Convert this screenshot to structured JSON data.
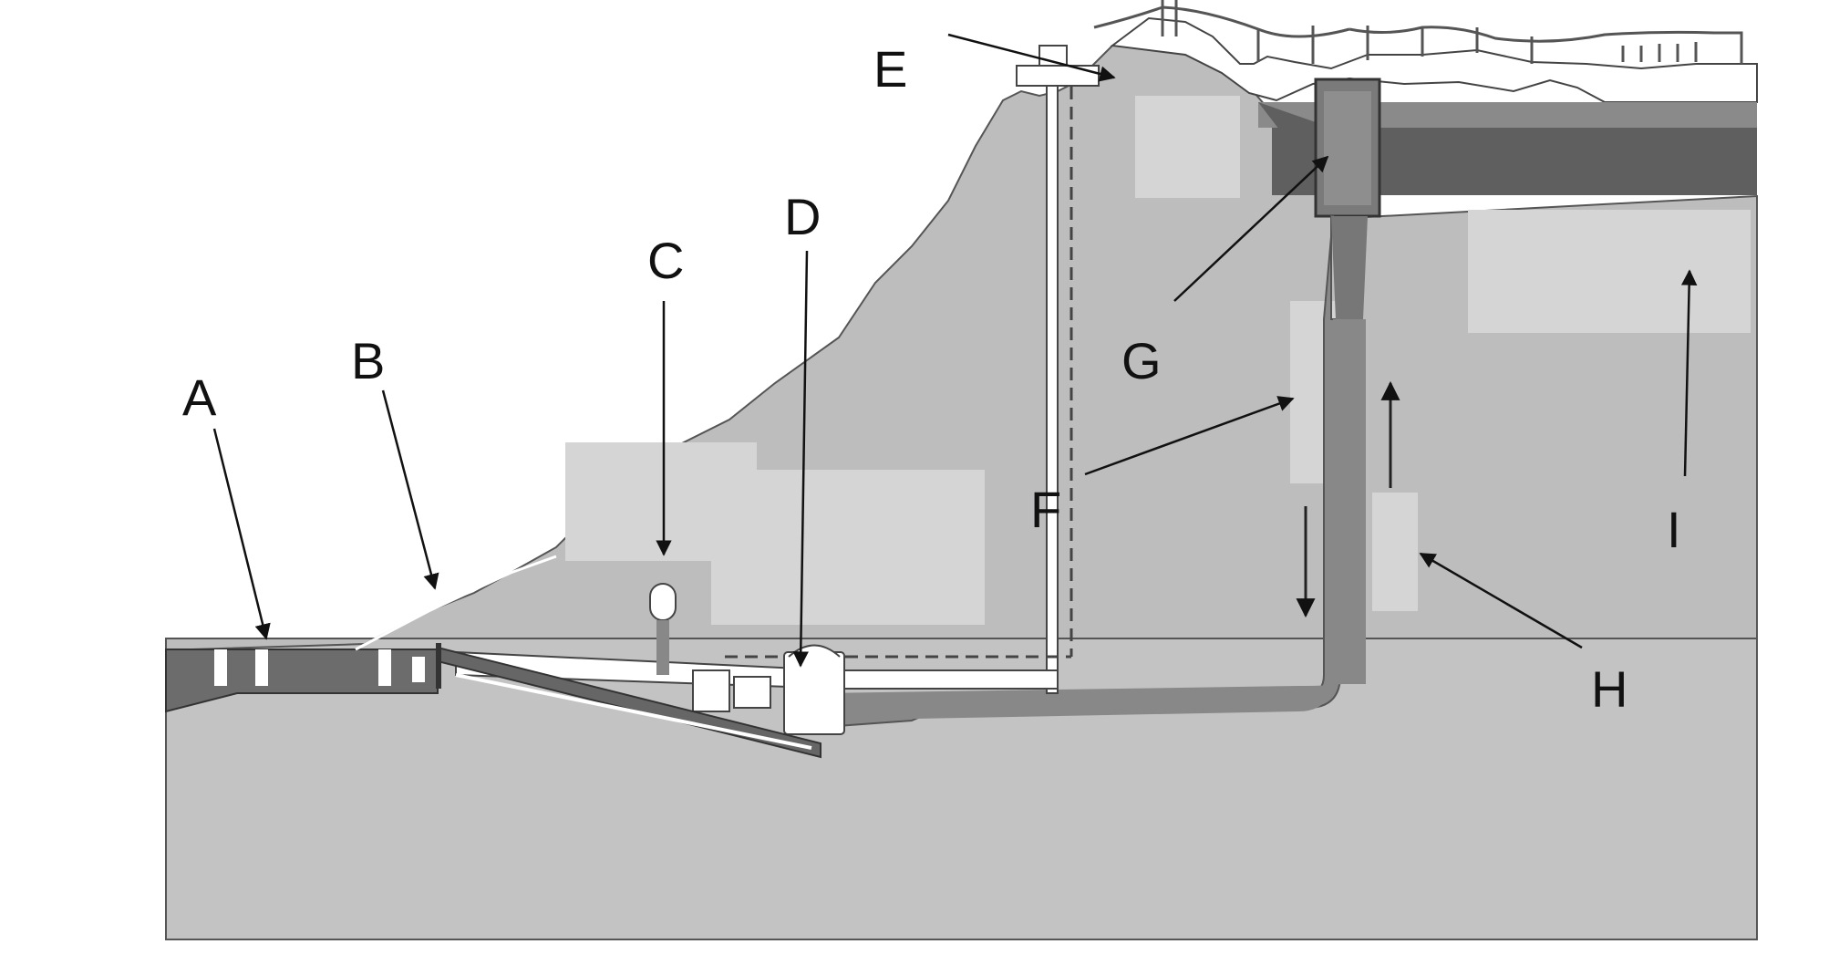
{
  "diagram": {
    "labels": {
      "a": "A",
      "b": "B",
      "c": "C",
      "d": "D",
      "e": "E",
      "f": "F",
      "g": "G",
      "h": "H",
      "i": "I"
    },
    "colors": {
      "background": "#ffffff",
      "terrain": "#c3c3c4",
      "mountain": "#bdbdbe",
      "label_box": "#d5d5d5",
      "dark_band": "#5f5f5f",
      "mid_band": "#8a8a8a",
      "pipe": "#888888",
      "white": "#ffffff",
      "stroke": "#333333",
      "arrow": "#111111"
    }
  }
}
